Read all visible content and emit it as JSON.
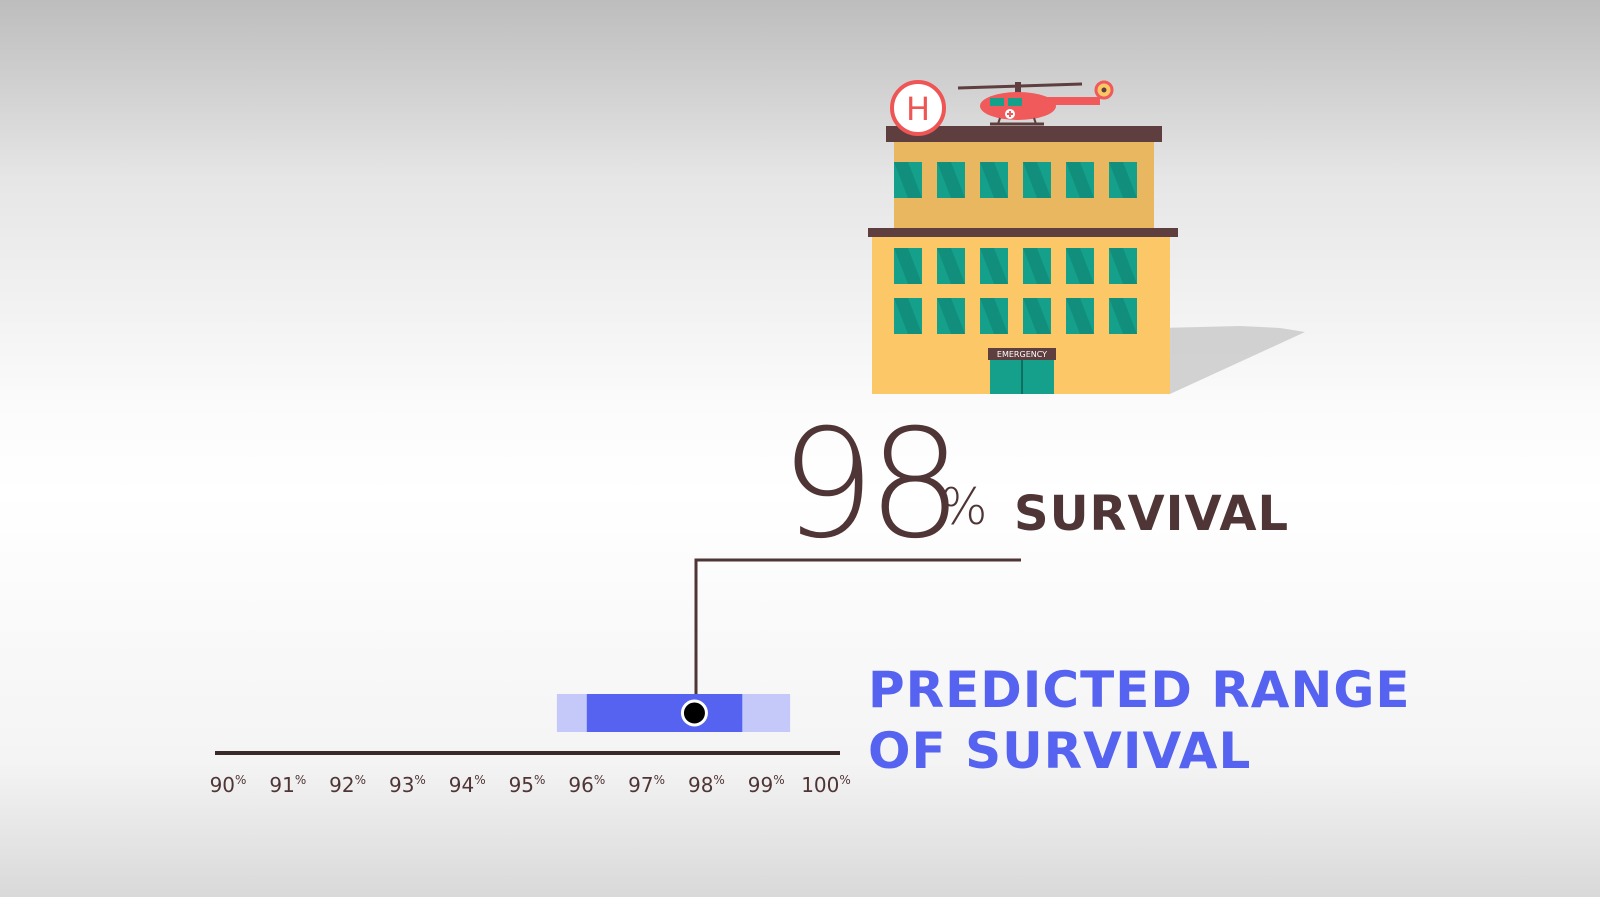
{
  "hospital": {
    "helipad_letter": "H",
    "entrance_sign": "EMERGENCY",
    "colors": {
      "wall": "#fcc867",
      "wall_upper": "#e9b760",
      "roof": "#5e3e3e",
      "window": "#14a08a",
      "window_shade": "#0d6f62",
      "helicopter": "#f05a5a",
      "helipad_ring": "#ef5555"
    }
  },
  "headline": {
    "value": "98",
    "percent_sign": "%",
    "label": "SURVIVAL"
  },
  "range_label": {
    "line1": "PREDICTED RANGE",
    "line2": "OF SURVIVAL"
  },
  "chart_data": {
    "type": "range",
    "x_ticks": [
      {
        "value": "90",
        "unit": "%"
      },
      {
        "value": "91",
        "unit": "%"
      },
      {
        "value": "92",
        "unit": "%"
      },
      {
        "value": "93",
        "unit": "%"
      },
      {
        "value": "94",
        "unit": "%"
      },
      {
        "value": "95",
        "unit": "%"
      },
      {
        "value": "96",
        "unit": "%"
      },
      {
        "value": "97",
        "unit": "%"
      },
      {
        "value": "98",
        "unit": "%"
      },
      {
        "value": "99",
        "unit": "%"
      },
      {
        "value": "100",
        "unit": "%"
      }
    ],
    "xlim": [
      90,
      100
    ],
    "point_estimate": 97.8,
    "inner_range": [
      96.0,
      98.6
    ],
    "outer_range": [
      95.5,
      99.4
    ],
    "colors": {
      "inner": "#5563f0",
      "outer": "#c5c9fa",
      "axis": "#3b2a2a",
      "tick_text": "#4f3535",
      "connector": "#4f3535"
    }
  }
}
